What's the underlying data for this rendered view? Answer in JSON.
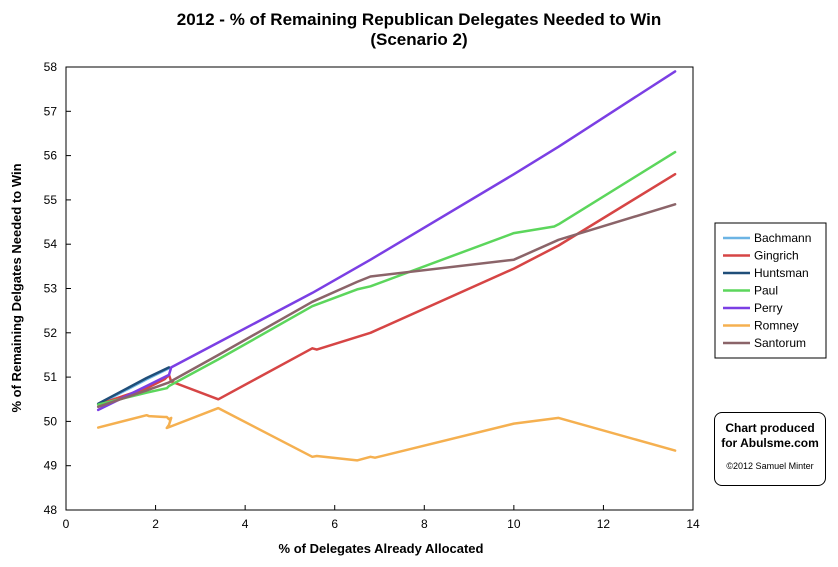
{
  "chart_data": {
    "type": "line",
    "title": "2012 - % of Remaining Republican Delegates Needed to Win",
    "subtitle": "(Scenario 2)",
    "xlabel": "% of Delegates Already Allocated",
    "ylabel": "% of Remaining Delgates Needed to Win",
    "xlim": [
      0,
      14
    ],
    "ylim": [
      48,
      58
    ],
    "xticks": [
      "0",
      "2",
      "4",
      "6",
      "8",
      "10",
      "12",
      "14"
    ],
    "yticks": [
      "48",
      "49",
      "50",
      "51",
      "52",
      "53",
      "54",
      "55",
      "56",
      "57",
      "58"
    ],
    "grid": false,
    "legend_position": "right",
    "series": [
      {
        "name": "Bachmann",
        "color": "#6cb4e4",
        "x": [
          0.72,
          1.8,
          2.3
        ],
        "y": [
          50.38,
          50.95,
          51.2
        ]
      },
      {
        "name": "Gingrich",
        "color": "#d64545",
        "x": [
          0.72,
          1.8,
          2.2,
          2.25,
          2.3,
          2.35,
          3.4,
          5.5,
          5.6,
          6.8,
          10.0,
          11.0,
          13.6
        ],
        "y": [
          50.38,
          50.75,
          50.95,
          51.0,
          51.05,
          50.9,
          50.5,
          51.65,
          51.62,
          52.0,
          53.45,
          53.97,
          55.58
        ]
      },
      {
        "name": "Huntsman",
        "color": "#1f4e79",
        "x": [
          0.72,
          1.8,
          2.3
        ],
        "y": [
          50.4,
          50.98,
          51.22
        ]
      },
      {
        "name": "Paul",
        "color": "#5cd65c",
        "x": [
          0.72,
          1.8,
          2.25,
          2.3,
          3.4,
          5.5,
          6.5,
          6.8,
          10.0,
          10.9,
          11.0,
          13.6
        ],
        "y": [
          50.38,
          50.65,
          50.75,
          50.8,
          51.4,
          52.6,
          52.98,
          53.05,
          54.25,
          54.4,
          54.45,
          56.08
        ]
      },
      {
        "name": "Perry",
        "color": "#7b3fe4",
        "x": [
          0.72,
          1.8,
          2.2,
          2.3,
          2.35,
          3.4,
          5.5,
          6.8,
          10.0,
          11.0,
          13.6
        ],
        "y": [
          50.26,
          50.8,
          51.0,
          51.05,
          51.22,
          51.78,
          52.9,
          53.65,
          55.58,
          56.2,
          57.9
        ]
      },
      {
        "name": "Romney",
        "color": "#f5b050",
        "x": [
          0.72,
          1.8,
          1.85,
          2.2,
          2.25,
          2.3,
          2.35,
          2.3,
          2.25,
          3.4,
          5.5,
          5.6,
          6.5,
          6.8,
          6.9,
          10.0,
          11.0,
          13.6
        ],
        "y": [
          49.86,
          50.14,
          50.12,
          50.1,
          50.1,
          50.05,
          50.08,
          49.92,
          49.85,
          50.3,
          49.2,
          49.22,
          49.12,
          49.2,
          49.18,
          49.95,
          50.08,
          49.34
        ]
      },
      {
        "name": "Santorum",
        "color": "#8b6469",
        "x": [
          0.72,
          1.8,
          2.3,
          3.4,
          5.5,
          6.5,
          6.8,
          10.0,
          11.0,
          13.6
        ],
        "y": [
          50.33,
          50.7,
          50.88,
          51.5,
          52.7,
          53.15,
          53.27,
          53.65,
          54.1,
          54.9
        ]
      }
    ]
  },
  "credit": {
    "line1": "Chart produced",
    "line2": "for Abulsme.com",
    "copyright": "©2012 Samuel Minter"
  }
}
